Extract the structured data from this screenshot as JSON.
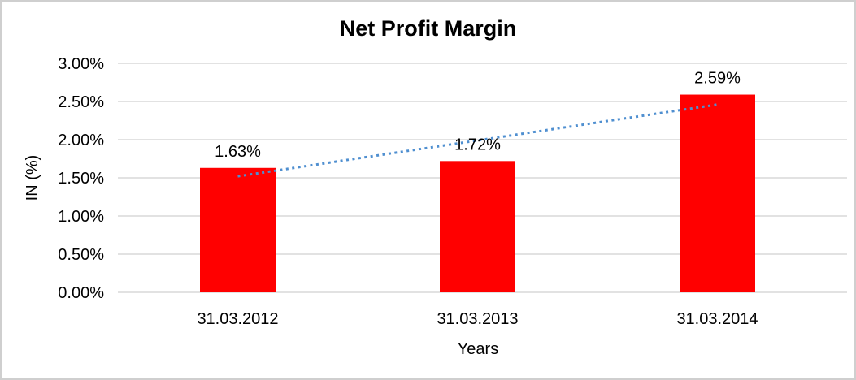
{
  "chart_data": {
    "type": "bar",
    "title": "Net Profit Margin",
    "xlabel": "Years",
    "ylabel": "IN (%)",
    "categories": [
      "31.03.2012",
      "31.03.2013",
      "31.03.2014"
    ],
    "values": [
      1.63,
      1.72,
      2.59
    ],
    "data_labels": [
      "1.63%",
      "1.72%",
      "2.59%"
    ],
    "ytick_labels": [
      "0.00%",
      "0.50%",
      "1.00%",
      "1.50%",
      "2.00%",
      "2.50%",
      "3.00%"
    ],
    "ytick_step": 0.5,
    "ylim": [
      0,
      3
    ],
    "grid": true,
    "legend": "none",
    "bar_color": "#ff0000",
    "gridline_color": "#d9d9d9",
    "text_color": "#000000",
    "background_color": "#ffffff",
    "border_color": "#cfcfcf",
    "trendline": {
      "style": "dotted",
      "color": "#4f8fd0",
      "start": {
        "category_index": 0,
        "value": 1.52
      },
      "end": {
        "category_index": 2,
        "value": 2.46
      }
    }
  }
}
